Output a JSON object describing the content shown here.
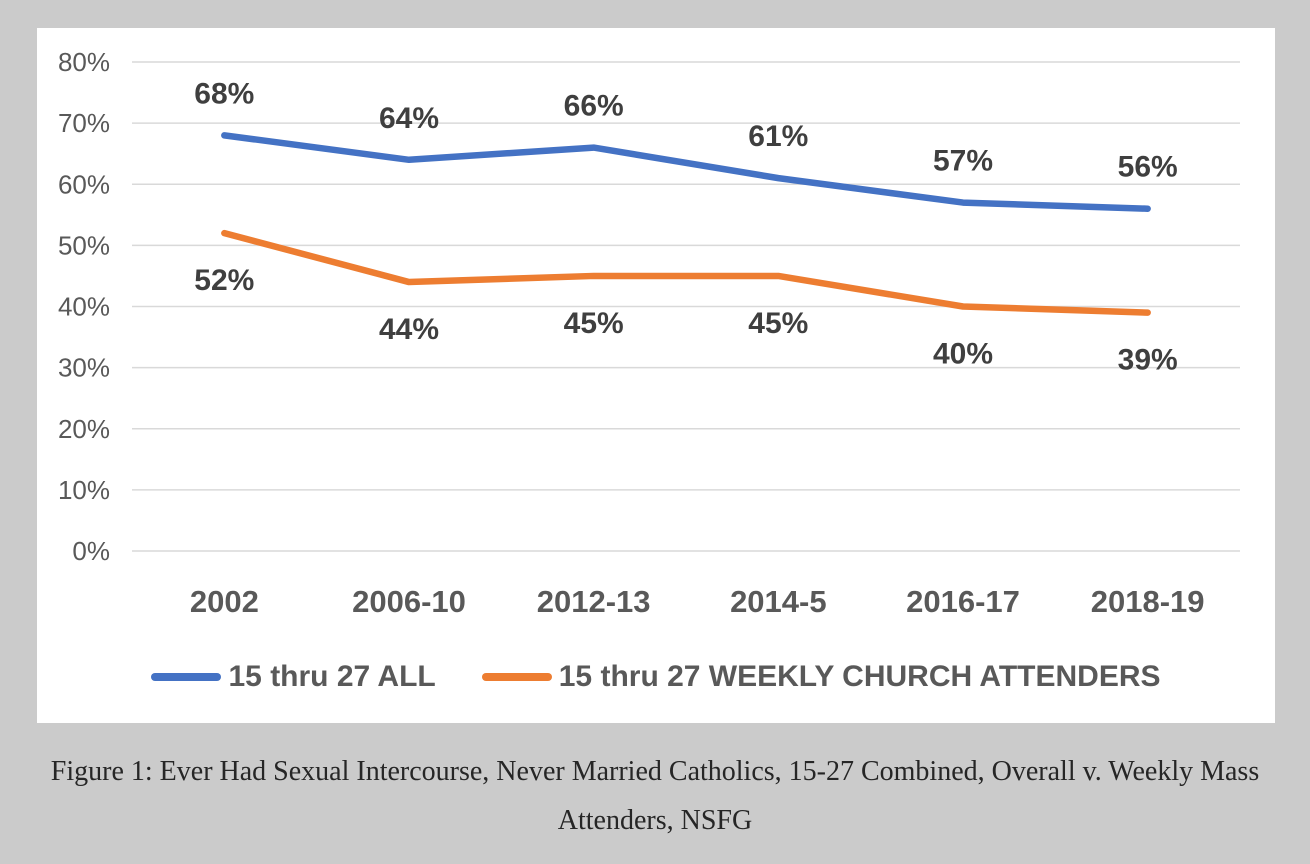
{
  "caption": {
    "line1": "Figure 1: Ever Had Sexual Intercourse, Never Married Catholics, 15-27 Combined, Overall v. Weekly Mass",
    "line2": "Attenders, NSFG"
  },
  "colors": {
    "page_background": "#CBCBCB",
    "plot_background": "#FFFFFF",
    "gridline": "#D9D9D9",
    "axis_text": "#595959",
    "data_label_text": "#3F3F3F",
    "series_all": "#4472C4",
    "series_weekly": "#ED7D31"
  },
  "chart_data": {
    "type": "line",
    "categories": [
      "2002",
      "2006-10",
      "2012-13",
      "2014-5",
      "2016-17",
      "2018-19"
    ],
    "series": [
      {
        "name": "15 thru 27 ALL",
        "color": "#4472C4",
        "values": [
          68,
          64,
          66,
          61,
          57,
          56
        ],
        "data_labels": [
          "68%",
          "64%",
          "66%",
          "61%",
          "57%",
          "56%"
        ],
        "label_position": "above"
      },
      {
        "name": "15 thru 27 WEEKLY CHURCH ATTENDERS",
        "color": "#ED7D31",
        "values": [
          52,
          44,
          45,
          45,
          40,
          39
        ],
        "data_labels": [
          "52%",
          "44%",
          "45%",
          "45%",
          "40%",
          "39%"
        ],
        "label_position": "below"
      }
    ],
    "ylim": [
      0,
      80
    ],
    "ytick_step": 10,
    "ytick_labels": [
      "0%",
      "10%",
      "20%",
      "30%",
      "40%",
      "50%",
      "60%",
      "70%",
      "80%"
    ],
    "grid": "horizontal",
    "legend_position": "bottom"
  }
}
